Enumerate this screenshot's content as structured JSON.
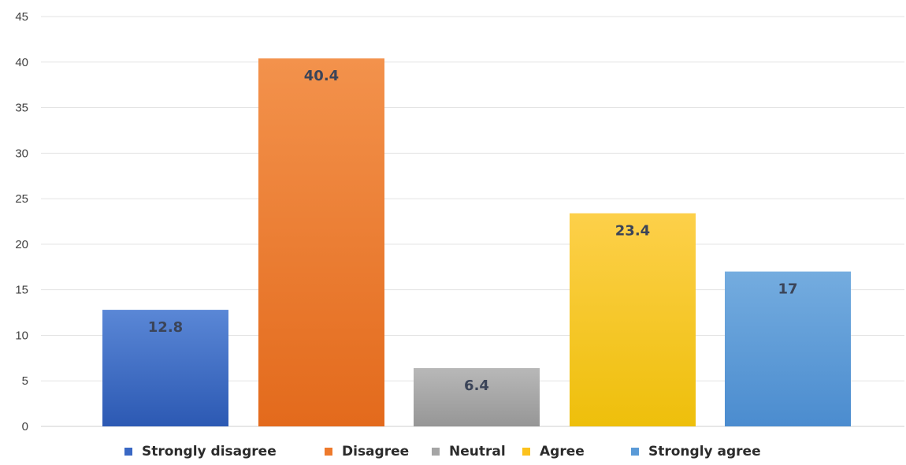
{
  "chart_data": {
    "type": "bar",
    "categories": [
      "Strongly disagree",
      "Disagree",
      "Neutral",
      "Agree",
      "Strongly agree"
    ],
    "values": [
      12.8,
      40.4,
      6.4,
      23.4,
      17
    ],
    "value_labels": [
      "12.8",
      "40.4",
      "6.4",
      "23.4",
      "17"
    ],
    "title": "",
    "xlabel": "",
    "ylabel": "",
    "ylim": [
      0,
      45
    ],
    "yticks": [
      "0",
      "5",
      "10",
      "15",
      "20",
      "25",
      "30",
      "35",
      "40",
      "45"
    ],
    "grid": true,
    "legend_position": "bottom",
    "colors": [
      "#3a68c4",
      "#ee7a2c",
      "#a5a5a5",
      "#fcc21d",
      "#5a9ad7"
    ],
    "colors_light": [
      "#5a87d6",
      "#f3924c",
      "#b8b8b8",
      "#fdd04a",
      "#74acdf"
    ],
    "colors_dark": [
      "#2c59b3",
      "#e36a1c",
      "#969696",
      "#eebf0b",
      "#4b8ccf"
    ]
  }
}
